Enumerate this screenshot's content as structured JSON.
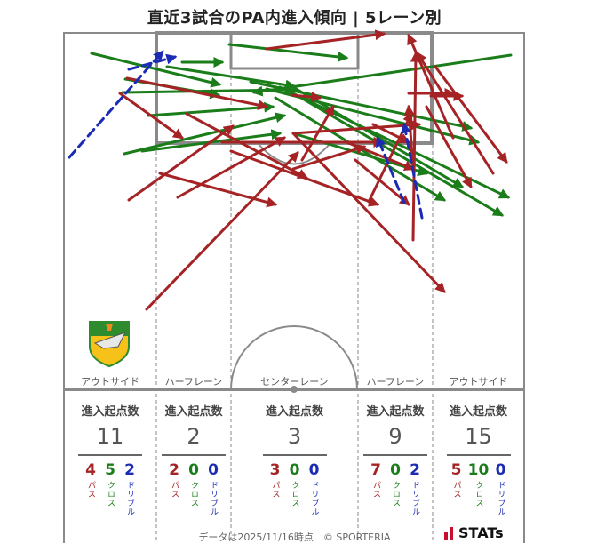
{
  "title": "直近3試合のPA内進入傾向 | 5レーン別",
  "lanes": [
    {
      "name": "アウトサイド",
      "stat_header": "進入起点数",
      "total": "11",
      "pass": "4",
      "cross": "5",
      "dribble": "2"
    },
    {
      "name": "ハーフレーン",
      "stat_header": "進入起点数",
      "total": "2",
      "pass": "2",
      "cross": "0",
      "dribble": "0"
    },
    {
      "name": "センターレーン",
      "stat_header": "進入起点数",
      "total": "3",
      "pass": "3",
      "cross": "0",
      "dribble": "0"
    },
    {
      "name": "ハーフレーン",
      "stat_header": "進入起点数",
      "total": "9",
      "pass": "7",
      "cross": "0",
      "dribble": "2"
    },
    {
      "name": "アウトサイド",
      "stat_header": "進入起点数",
      "total": "15",
      "pass": "5",
      "cross": "10",
      "dribble": "0"
    }
  ],
  "categories": {
    "pass": "パス",
    "cross": "クロス",
    "dribble": "ドリブル"
  },
  "colors": {
    "pass": "#a52325",
    "cross": "#1a7d1a",
    "dribble": "#1c2bb4",
    "pitch_line": "#7a7a7a"
  },
  "footer": "データは2025/11/16時点　© SPORTERIA",
  "brand": "STATs",
  "logo_icon": "team-crest-icon"
}
